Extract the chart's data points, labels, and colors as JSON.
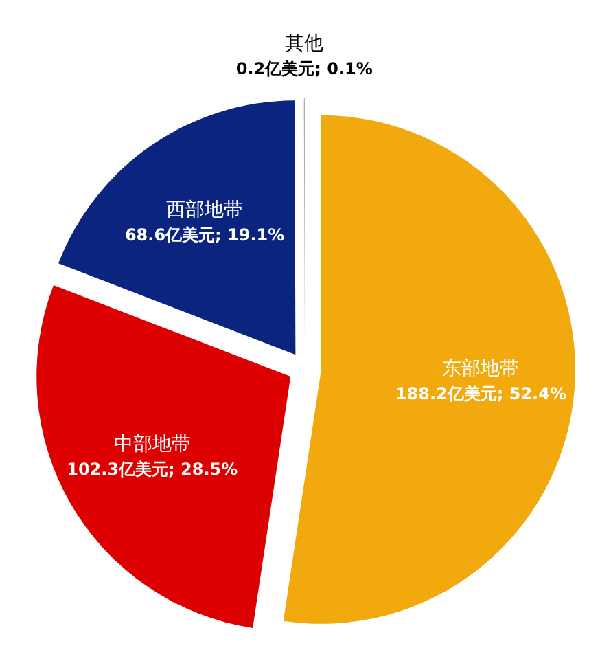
{
  "chart_data": {
    "type": "pie",
    "categories": [
      "东部地带",
      "中部地带",
      "西部地带",
      "其他"
    ],
    "values": [
      188.2,
      102.3,
      68.6,
      0.2
    ],
    "value_labels": [
      "188.2亿美元; 52.4%",
      "102.3亿美元; 28.5%",
      "68.6亿美元; 19.1%",
      "0.2亿美元; 0.1%"
    ],
    "colors": [
      "#f2a90d",
      "#dc0000",
      "#0a2480",
      "#a8a8a8"
    ]
  }
}
